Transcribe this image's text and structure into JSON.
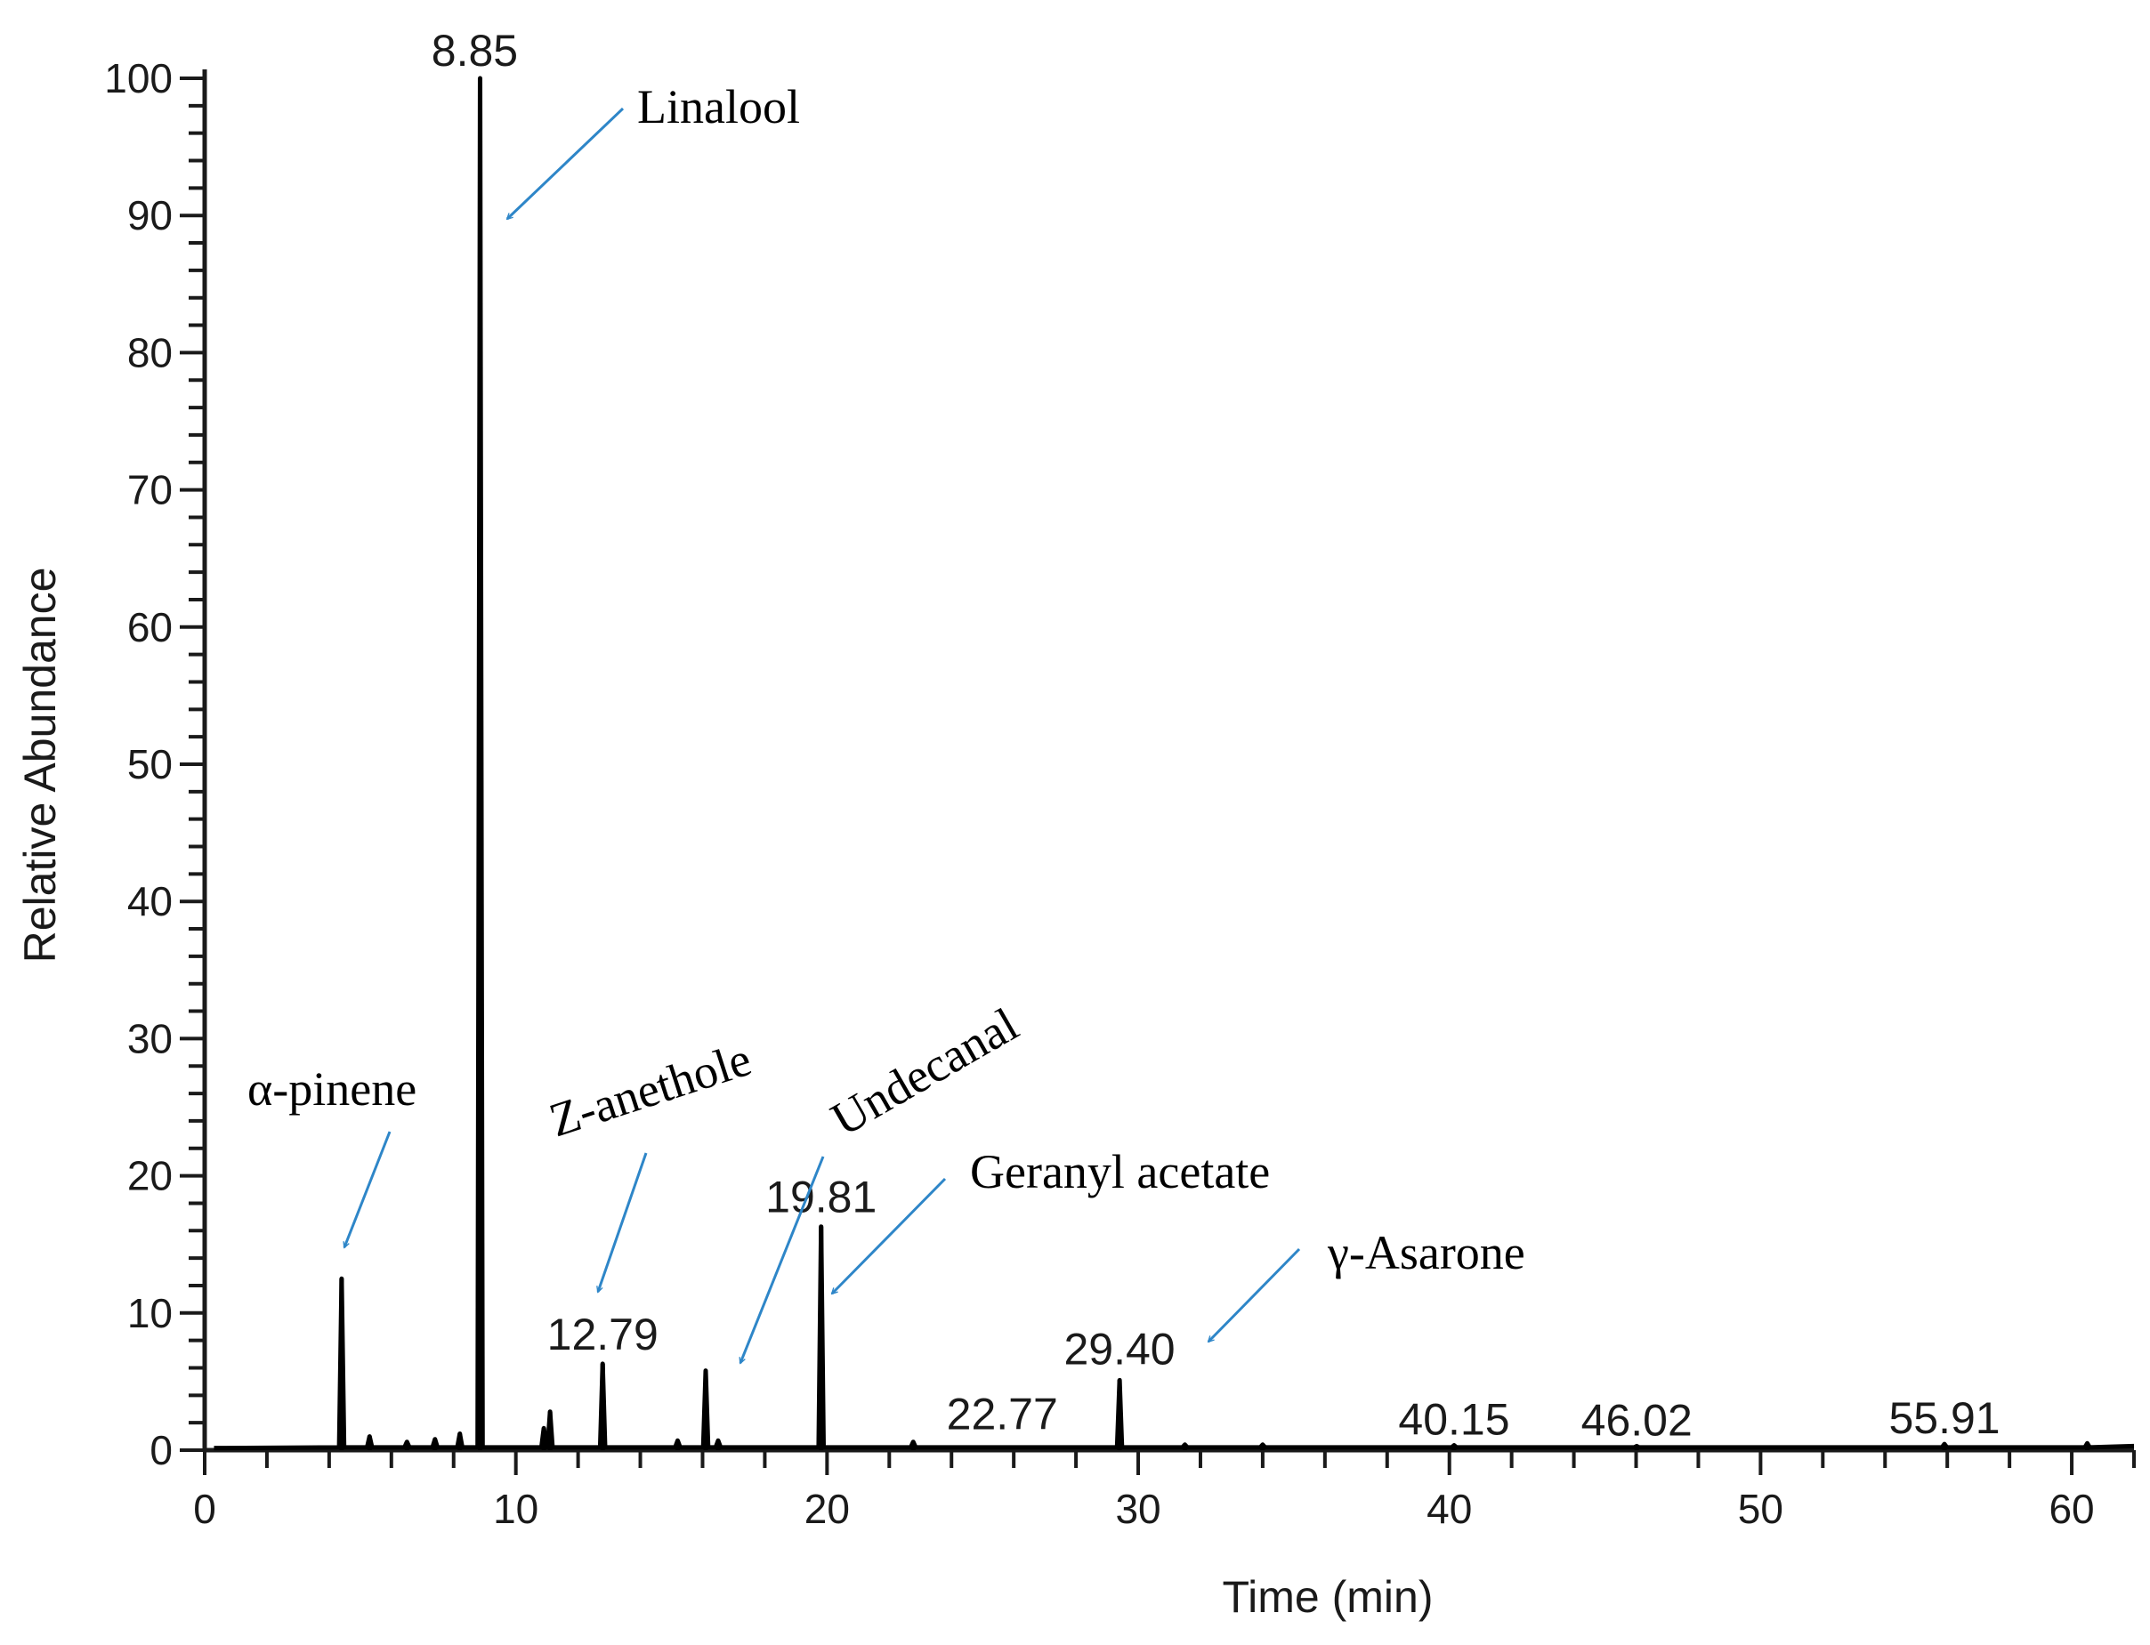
{
  "chart_data": {
    "type": "line",
    "xlabel": "Time (min)",
    "ylabel": "Relative Abundance",
    "xlim": [
      0,
      62
    ],
    "ylim": [
      0,
      100
    ],
    "x_ticks": [
      0,
      10,
      20,
      30,
      40,
      50,
      60
    ],
    "y_ticks": [
      0,
      10,
      20,
      30,
      40,
      50,
      60,
      70,
      80,
      90,
      100
    ],
    "grid": false,
    "series": [
      {
        "peaks": [
          {
            "x": 4.4,
            "y": 12.5
          },
          {
            "x": 5.3,
            "y": 1.0
          },
          {
            "x": 6.5,
            "y": 0.6
          },
          {
            "x": 7.4,
            "y": 0.8
          },
          {
            "x": 8.2,
            "y": 1.2
          },
          {
            "x": 8.85,
            "y": 100
          },
          {
            "x": 10.9,
            "y": 1.6
          },
          {
            "x": 11.1,
            "y": 2.8
          },
          {
            "x": 12.79,
            "y": 6.3
          },
          {
            "x": 15.2,
            "y": 0.7
          },
          {
            "x": 16.1,
            "y": 5.8
          },
          {
            "x": 16.5,
            "y": 0.7
          },
          {
            "x": 19.81,
            "y": 16.3
          },
          {
            "x": 22.77,
            "y": 0.6
          },
          {
            "x": 29.4,
            "y": 5.1
          },
          {
            "x": 31.5,
            "y": 0.4
          },
          {
            "x": 34.0,
            "y": 0.4
          },
          {
            "x": 40.15,
            "y": 0.35
          },
          {
            "x": 46.02,
            "y": 0.3
          },
          {
            "x": 55.91,
            "y": 0.45
          },
          {
            "x": 60.5,
            "y": 0.5
          }
        ]
      }
    ],
    "peak_labels": [
      {
        "text": "8.85",
        "x": 8.85,
        "y": 100
      },
      {
        "text": "12.79",
        "x": 12.79,
        "y": 6.3
      },
      {
        "text": "19.81",
        "x": 19.81,
        "y": 16.3
      },
      {
        "text": "22.77",
        "x": 22.77,
        "y": 0.6
      },
      {
        "text": "29.40",
        "x": 29.4,
        "y": 5.1
      },
      {
        "text": "40.15",
        "x": 40.15,
        "y": 0.35
      },
      {
        "text": "46.02",
        "x": 46.02,
        "y": 0.3
      },
      {
        "text": "55.91",
        "x": 55.91,
        "y": 0.45
      }
    ],
    "annotations": [
      {
        "text": "Linalool",
        "target_x": 8.85,
        "target_y": 100
      },
      {
        "text": "α-pinene",
        "target_x": 4.4,
        "target_y": 12.5
      },
      {
        "text": "Z-anethole",
        "target_x": 12.79,
        "target_y": 6.3
      },
      {
        "text": "Undecanal",
        "target_x": 16.1,
        "target_y": 5.8
      },
      {
        "text": "Geranyl acetate",
        "target_x": 19.81,
        "target_y": 16.3
      },
      {
        "text": "γ-Asarone",
        "target_x": 29.4,
        "target_y": 5.1
      }
    ],
    "colors": {
      "trace": "#000000",
      "axis": "#1a1a1a",
      "arrow": "#2e86c8"
    }
  }
}
